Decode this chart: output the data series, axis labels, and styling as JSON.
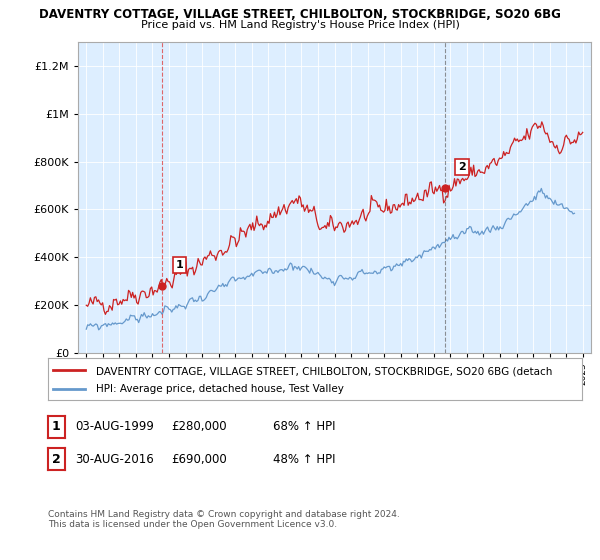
{
  "title1": "DAVENTRY COTTAGE, VILLAGE STREET, CHILBOLTON, STOCKBRIDGE, SO20 6BG",
  "title2": "Price paid vs. HM Land Registry's House Price Index (HPI)",
  "legend_red": "DAVENTRY COTTAGE, VILLAGE STREET, CHILBOLTON, STOCKBRIDGE, SO20 6BG (detach",
  "legend_blue": "HPI: Average price, detached house, Test Valley",
  "footer": "Contains HM Land Registry data © Crown copyright and database right 2024.\nThis data is licensed under the Open Government Licence v3.0.",
  "sale1_label": "1",
  "sale1_date": "03-AUG-1999",
  "sale1_price": "£280,000",
  "sale1_hpi": "68% ↑ HPI",
  "sale2_label": "2",
  "sale2_date": "30-AUG-2016",
  "sale2_price": "£690,000",
  "sale2_hpi": "48% ↑ HPI",
  "red_color": "#cc2222",
  "blue_color": "#6699cc",
  "marker_color": "#cc2222",
  "vline1_color": "#dd4444",
  "vline2_color": "#666666",
  "ylim": [
    0,
    1300000
  ],
  "yticks": [
    0,
    200000,
    400000,
    600000,
    800000,
    1000000,
    1200000
  ],
  "ytick_labels": [
    "£0",
    "£200K",
    "£400K",
    "£600K",
    "£800K",
    "£1M",
    "£1.2M"
  ],
  "xstart_year": 1995,
  "xend_year": 2025,
  "sale1_year": 1999.6,
  "sale1_value": 280000,
  "sale2_year": 2016.67,
  "sale2_value": 690000,
  "bg_color": "#ffffff",
  "plot_bg_color": "#ddeeff",
  "grid_color": "#ffffff"
}
